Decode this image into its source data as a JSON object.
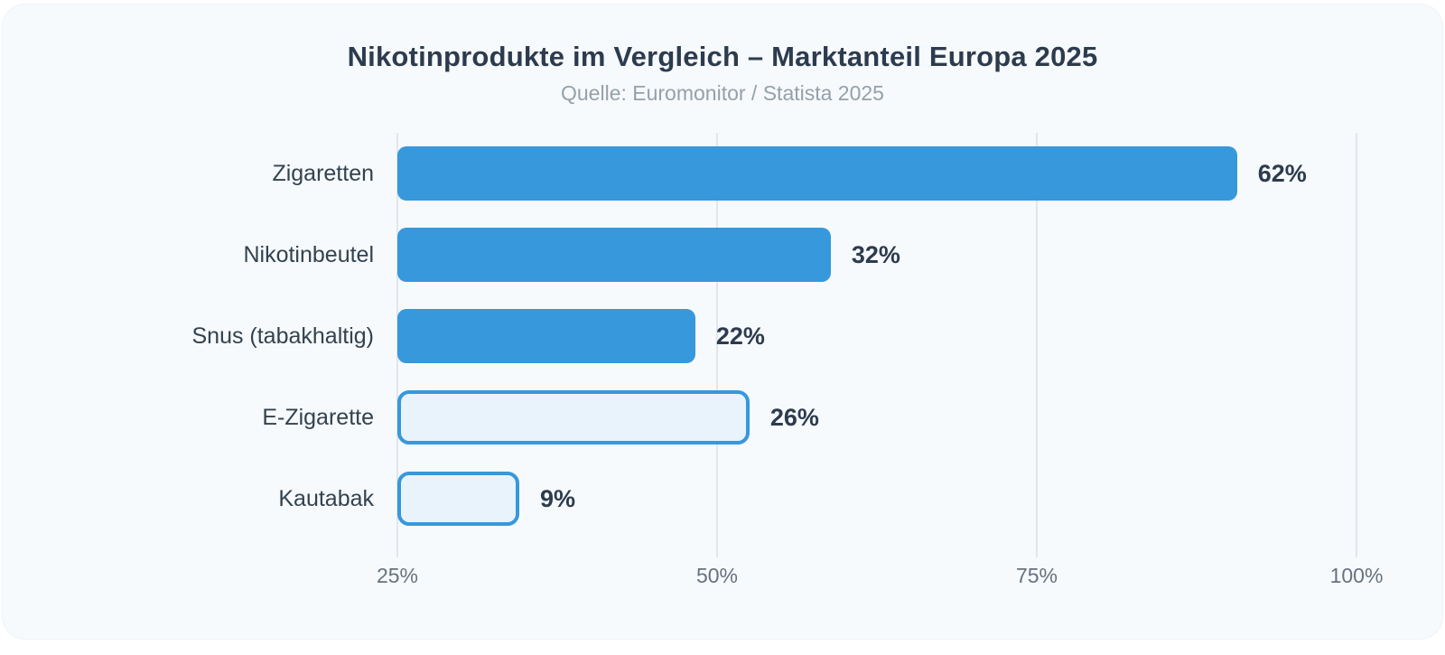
{
  "card": {
    "title": "Nikotinprodukte im Vergleich – Marktanteil Europa 2025",
    "subtitle": "Quelle: Euromonitor / Statista 2025"
  },
  "colors": {
    "card_bg": "#f6fafd",
    "bar_solid": "#3798db",
    "bar_light_fill": "#e9f3fc",
    "bar_border": "#3798db",
    "title": "#2d3b4e",
    "subtitle": "#95a0aa",
    "category_label": "#33424f",
    "value_label": "#2d3b4e",
    "grid": "#e1e6eb",
    "tick": "#66727f"
  },
  "chart_data": {
    "type": "bar",
    "orientation": "horizontal",
    "title": "Nikotinprodukte im Vergleich – Marktanteil Europa 2025",
    "subtitle": "Quelle: Euromonitor / Statista 2025",
    "categories": [
      "Zigaretten",
      "Nikotinbeutel",
      "Snus (tabakhaltig)",
      "E-Zigarette",
      "Kautabak"
    ],
    "values": [
      62,
      32,
      22,
      26,
      9
    ],
    "value_labels": [
      "62%",
      "32%",
      "22%",
      "26%",
      "9%"
    ],
    "bar_styles": [
      "solid",
      "solid",
      "solid",
      "outline",
      "outline"
    ],
    "x_ticks": [
      "25%",
      "50%",
      "75%",
      "100%"
    ],
    "x_tick_positions_pct": [
      0,
      33.333,
      66.667,
      100
    ],
    "grid": true,
    "legend": false,
    "value_label_position": "right-of-bar"
  }
}
